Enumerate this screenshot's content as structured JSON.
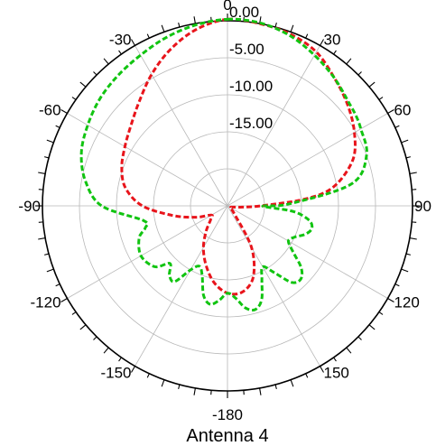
{
  "chart_data": {
    "type": "polar-line",
    "title": "",
    "caption": "Antenna 4",
    "angle_labels": [
      {
        "deg": 0,
        "text": "0"
      },
      {
        "deg": 30,
        "text": "30"
      },
      {
        "deg": -30,
        "text": "-30"
      },
      {
        "deg": 60,
        "text": "60"
      },
      {
        "deg": -60,
        "text": "-60"
      },
      {
        "deg": 90,
        "text": "90"
      },
      {
        "deg": -90,
        "text": "-90"
      },
      {
        "deg": 120,
        "text": "120"
      },
      {
        "deg": -120,
        "text": "-120"
      },
      {
        "deg": 150,
        "text": "150"
      },
      {
        "deg": -150,
        "text": "-150"
      },
      {
        "deg": 180,
        "text": "-180"
      }
    ],
    "radial_labels": [
      {
        "value": 0,
        "text": "0.00"
      },
      {
        "value": -5,
        "text": "-5.00"
      },
      {
        "value": -10,
        "text": "-10.00"
      },
      {
        "value": -15,
        "text": "-15.00"
      }
    ],
    "r_range": [
      -25,
      0
    ],
    "grid": true,
    "angle_zero": "top",
    "angle_direction": "clockwise",
    "series": [
      {
        "color": "#e8141b",
        "style": "dashed",
        "angles": [
          0,
          10,
          20,
          30,
          40,
          50,
          60,
          70,
          80,
          85,
          90,
          95,
          100,
          110,
          120,
          130,
          140,
          150,
          160,
          170,
          180,
          190,
          200,
          210,
          220,
          230,
          240,
          250,
          260,
          270,
          280,
          290,
          300,
          310,
          320,
          330,
          340,
          350,
          360
        ],
        "values": [
          0.2,
          0.0,
          -0.3,
          -1.0,
          -2.5,
          -3.8,
          -5.2,
          -7.0,
          -10.5,
          -14.5,
          -20.5,
          -23.0,
          -24.0,
          -24.5,
          -24.5,
          -24.5,
          -23.5,
          -18.5,
          -14.8,
          -13.2,
          -13.2,
          -14.5,
          -16.5,
          -18.5,
          -20.5,
          -22.0,
          -22.5,
          -20.5,
          -17.5,
          -13.5,
          -11.0,
          -9.8,
          -9.0,
          -8.0,
          -6.5,
          -4.5,
          -2.5,
          -0.8,
          0.2
        ]
      },
      {
        "color": "#11c411",
        "style": "dashed",
        "angles": [
          0,
          10,
          20,
          30,
          40,
          50,
          55,
          60,
          70,
          80,
          88,
          90,
          92,
          95,
          100,
          105,
          110,
          115,
          120,
          125,
          130,
          135,
          140,
          145,
          150,
          155,
          160,
          165,
          170,
          175,
          180,
          185,
          190,
          195,
          200,
          205,
          210,
          215,
          220,
          225,
          230,
          240,
          250,
          255,
          260,
          270,
          280,
          290,
          300,
          310,
          320,
          330,
          340,
          350,
          360
        ],
        "values": [
          0.2,
          0.1,
          -0.5,
          -1.5,
          -2.5,
          -3.5,
          -3.8,
          -4.2,
          -5.0,
          -8.0,
          -16.5,
          -20.0,
          -19.5,
          -16.0,
          -13.8,
          -13.2,
          -13.8,
          -15.0,
          -15.5,
          -14.2,
          -12.0,
          -11.0,
          -11.5,
          -14.0,
          -15.5,
          -14.0,
          -11.5,
          -10.5,
          -11.0,
          -12.5,
          -13.2,
          -12.2,
          -11.5,
          -12.5,
          -15.0,
          -16.0,
          -15.0,
          -12.5,
          -12.8,
          -14.0,
          -12.2,
          -11.5,
          -12.3,
          -13.5,
          -13.5,
          -8.0,
          -5.5,
          -4.0,
          -3.2,
          -2.5,
          -2.0,
          -1.5,
          -0.8,
          -0.2,
          0.2
        ]
      }
    ]
  }
}
